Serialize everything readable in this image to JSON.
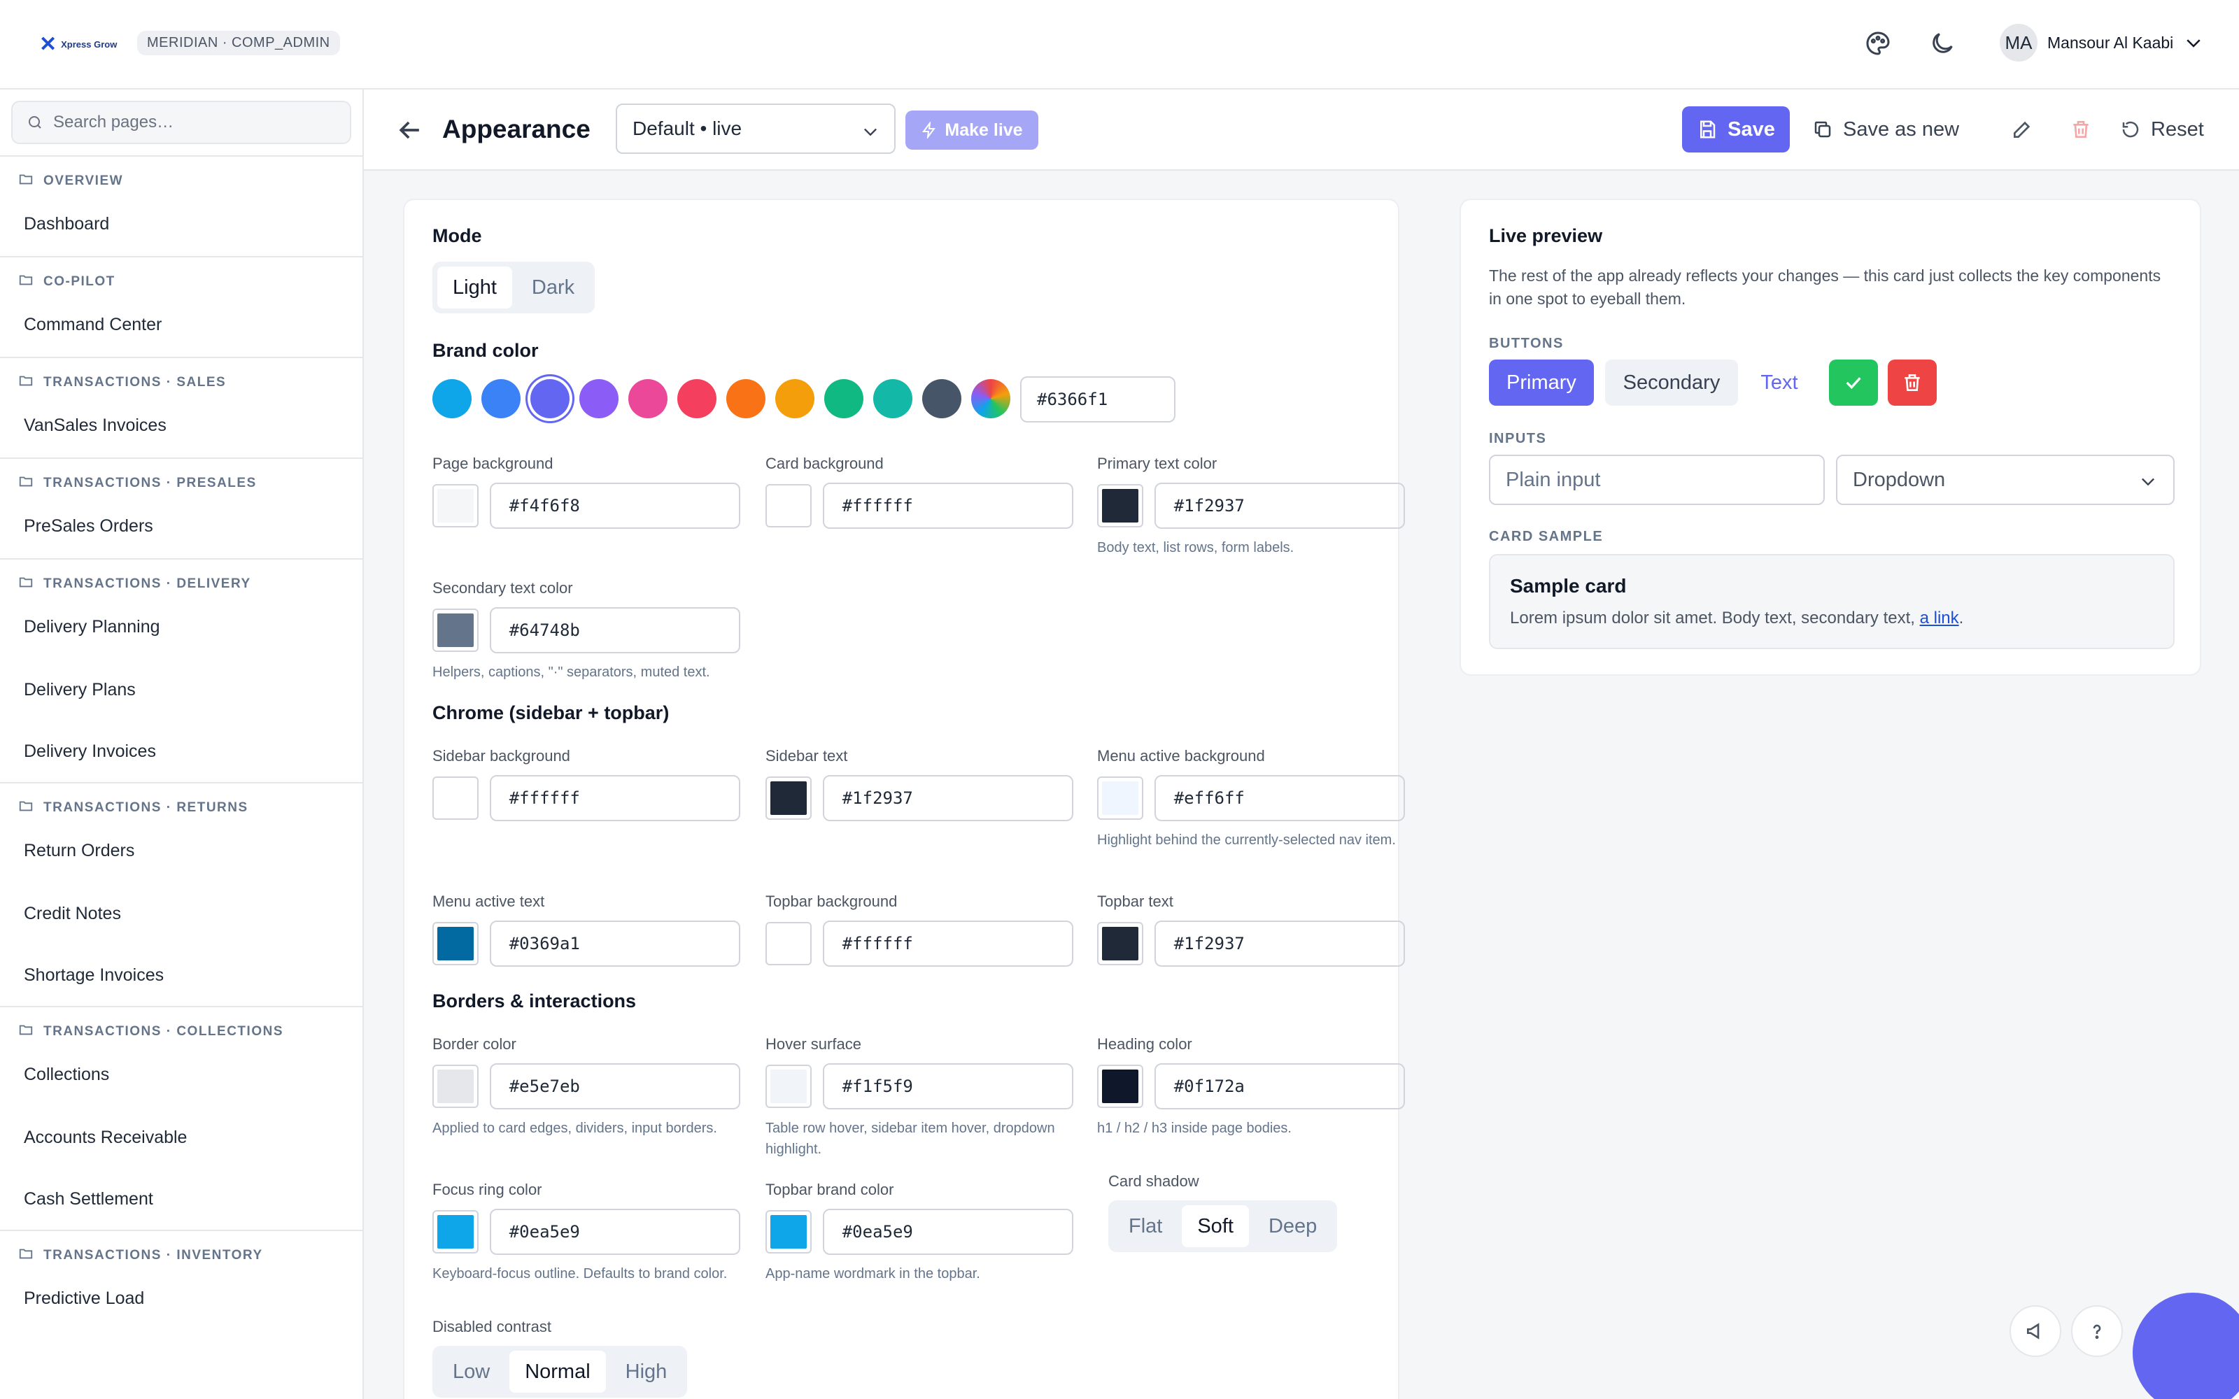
{
  "topbar": {
    "logo_text": "Xpress Grow",
    "tenant_badge": "MERIDIAN · COMP_ADMIN",
    "user_initials": "MA",
    "user_name": "Mansour Al Kaabi"
  },
  "sidebar": {
    "search_placeholder": "Search pages…",
    "sections": [
      {
        "title": "OVERVIEW",
        "items": [
          "Dashboard"
        ]
      },
      {
        "title": "CO-PILOT",
        "items": [
          "Command Center"
        ]
      },
      {
        "title": "TRANSACTIONS · SALES",
        "items": [
          "VanSales Invoices"
        ]
      },
      {
        "title": "TRANSACTIONS · PRESALES",
        "items": [
          "PreSales Orders"
        ]
      },
      {
        "title": "TRANSACTIONS · DELIVERY",
        "items": [
          "Delivery Planning",
          "Delivery Plans",
          "Delivery Invoices"
        ]
      },
      {
        "title": "TRANSACTIONS · RETURNS",
        "items": [
          "Return Orders",
          "Credit Notes",
          "Shortage Invoices"
        ]
      },
      {
        "title": "TRANSACTIONS · COLLECTIONS",
        "items": [
          "Collections",
          "Accounts Receivable",
          "Cash Settlement"
        ]
      },
      {
        "title": "TRANSACTIONS · INVENTORY",
        "items": [
          "Predictive Load"
        ]
      }
    ]
  },
  "header": {
    "title": "Appearance",
    "theme_select": "Default • live",
    "make_live": "Make live",
    "save": "Save",
    "save_as_new": "Save as new",
    "reset": "Reset"
  },
  "settings": {
    "mode": {
      "title": "Mode",
      "options": [
        "Light",
        "Dark"
      ],
      "selected": "Light"
    },
    "brand": {
      "title": "Brand color",
      "swatches": [
        "#0ea5e9",
        "#3b82f6",
        "#6366f1",
        "#8b5cf6",
        "#ec4899",
        "#f43f5e",
        "#f97316",
        "#f59e0b",
        "#10b981",
        "#14b8a6",
        "#475569",
        "custom-gradient"
      ],
      "selected": "#6366f1",
      "value": "#6366f1"
    },
    "colors": {
      "page_bg": {
        "label": "Page background",
        "value": "#f4f6f8",
        "help": ""
      },
      "card_bg": {
        "label": "Card background",
        "value": "#ffffff",
        "help": ""
      },
      "primary_text": {
        "label": "Primary text color",
        "value": "#1f2937",
        "help": "Body text, list rows, form labels."
      },
      "secondary_text": {
        "label": "Secondary text color",
        "value": "#64748b",
        "help": "Helpers, captions, \"·\" separators, muted text."
      }
    },
    "chrome_title": "Chrome (sidebar + topbar)",
    "chrome": {
      "sidebar_bg": {
        "label": "Sidebar background",
        "value": "#ffffff",
        "help": ""
      },
      "sidebar_text": {
        "label": "Sidebar text",
        "value": "#1f2937",
        "help": ""
      },
      "menu_active_bg": {
        "label": "Menu active background",
        "value": "#eff6ff",
        "help": "Highlight behind the currently-selected nav item."
      },
      "menu_active_text": {
        "label": "Menu active text",
        "value": "#0369a1",
        "help": ""
      },
      "topbar_bg": {
        "label": "Topbar background",
        "value": "#ffffff",
        "help": ""
      },
      "topbar_text": {
        "label": "Topbar text",
        "value": "#1f2937",
        "help": ""
      }
    },
    "borders_title": "Borders & interactions",
    "borders": {
      "border": {
        "label": "Border color",
        "value": "#e5e7eb",
        "help": "Applied to card edges, dividers, input borders."
      },
      "hover": {
        "label": "Hover surface",
        "value": "#f1f5f9",
        "help": "Table row hover, sidebar item hover, dropdown highlight."
      },
      "heading": {
        "label": "Heading color",
        "value": "#0f172a",
        "help": "h1 / h2 / h3 inside page bodies."
      },
      "focus": {
        "label": "Focus ring color",
        "value": "#0ea5e9",
        "help": "Keyboard-focus outline. Defaults to brand color."
      },
      "topbar_brand": {
        "label": "Topbar brand color",
        "value": "#0ea5e9",
        "help": "App-name wordmark in the topbar."
      }
    },
    "card_shadow": {
      "label": "Card shadow",
      "options": [
        "Flat",
        "Soft",
        "Deep"
      ],
      "selected": "Soft"
    },
    "disabled_contrast": {
      "label": "Disabled contrast",
      "options": [
        "Low",
        "Normal",
        "High"
      ],
      "selected": "Normal"
    }
  },
  "preview": {
    "title": "Live preview",
    "description": "The rest of the app already reflects your changes — this card just collects the key components in one spot to eyeball them.",
    "buttons_caption": "BUTTONS",
    "btn_primary": "Primary",
    "btn_secondary": "Secondary",
    "btn_text": "Text",
    "inputs_caption": "INPUTS",
    "input_placeholder": "Plain input",
    "dropdown": "Dropdown",
    "card_caption": "CARD SAMPLE",
    "sample_title": "Sample card",
    "sample_text": "Lorem ipsum dolor sit amet. Body text, secondary text, ",
    "sample_link": "a link",
    "sample_end": "."
  },
  "colors": {
    "brand": "#6366f1",
    "success": "#22c55e",
    "danger": "#ef4444"
  }
}
